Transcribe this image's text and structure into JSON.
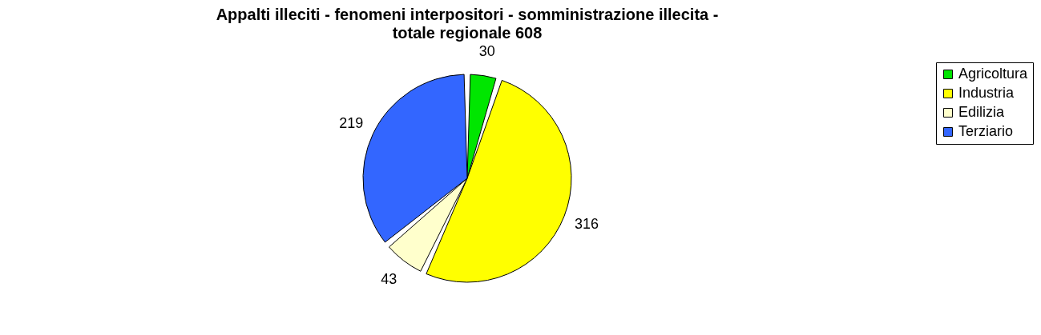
{
  "chart_data": {
    "type": "pie",
    "title": "Appalti illeciti - fenomeni interpositori - somministrazione illecita -",
    "subtitle": "totale regionale 608",
    "categories": [
      "Agricoltura",
      "Industria",
      "Edilizia",
      "Terziario"
    ],
    "values": [
      30,
      316,
      43,
      219
    ],
    "colors": [
      "#00e600",
      "#ffff00",
      "#ffffcc",
      "#3366ff"
    ],
    "data_labels": true,
    "legend": "right"
  }
}
